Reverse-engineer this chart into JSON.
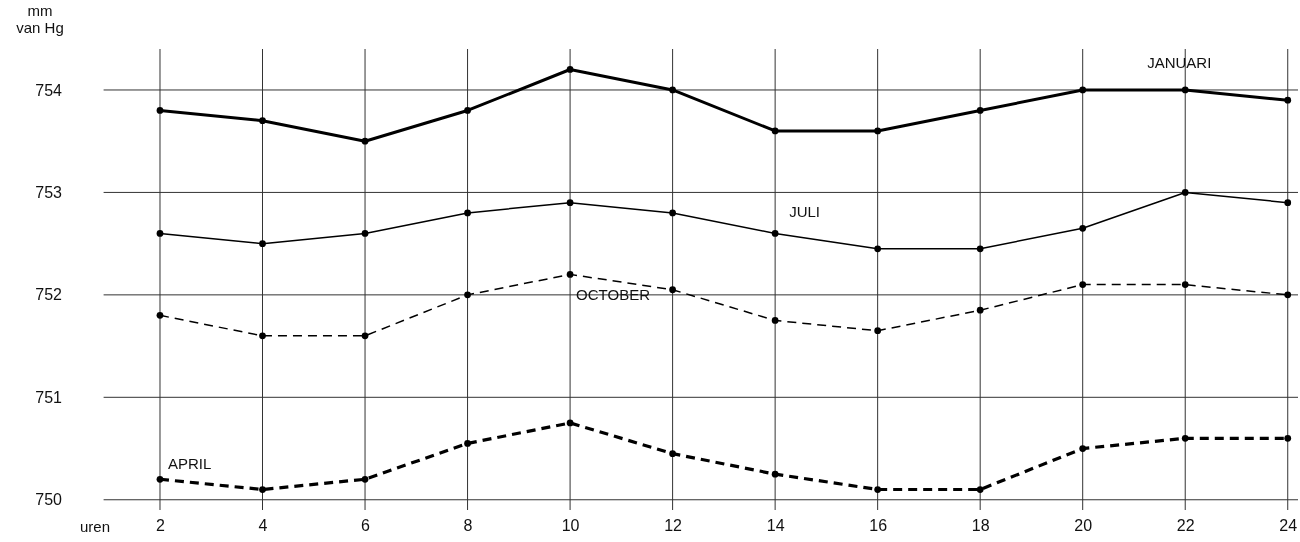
{
  "chart_data": {
    "type": "line",
    "ylabel": "mm\nvan Hg",
    "xlabel": "uren",
    "x": [
      2,
      4,
      6,
      8,
      10,
      12,
      14,
      16,
      18,
      20,
      22,
      24
    ],
    "xlim": [
      0.9,
      24.2
    ],
    "xticks": [
      2,
      4,
      6,
      8,
      10,
      12,
      14,
      16,
      18,
      20,
      22,
      24
    ],
    "ylim": [
      749.9,
      754.4
    ],
    "yticks": [
      750,
      751,
      752,
      753,
      754
    ],
    "grid": true,
    "marker": "circle",
    "series": [
      {
        "name": "JANUARI",
        "color": "#000000",
        "line_style": "solid",
        "values": [
          753.8,
          753.7,
          753.5,
          753.8,
          754.2,
          754.0,
          753.6,
          753.6,
          753.8,
          754.0,
          754.0,
          753.9
        ]
      },
      {
        "name": "JULI",
        "color": "#000000",
        "line_style": "solid",
        "values": [
          752.6,
          752.5,
          752.6,
          752.8,
          752.9,
          752.8,
          752.6,
          752.45,
          752.45,
          752.65,
          753.0,
          752.9
        ]
      },
      {
        "name": "OCTOBER",
        "color": "#000000",
        "line_style": "dashed",
        "values": [
          751.8,
          751.6,
          751.6,
          752.0,
          752.2,
          752.05,
          751.75,
          751.65,
          751.85,
          752.1,
          752.1,
          752.0
        ]
      },
      {
        "name": "APRIL",
        "color": "#000000",
        "line_style": "dashed",
        "values": [
          750.2,
          750.1,
          750.2,
          750.55,
          750.75,
          750.45,
          750.25,
          750.1,
          750.1,
          750.5,
          750.6,
          750.6
        ]
      }
    ]
  }
}
